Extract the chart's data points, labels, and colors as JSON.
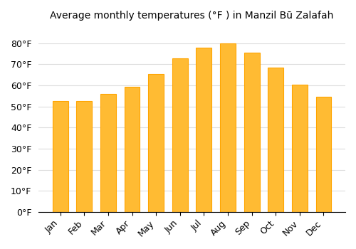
{
  "title": "Average monthly temperatures (°F ) in Manzil Bū Zalafah",
  "months": [
    "Jan",
    "Feb",
    "Mar",
    "Apr",
    "May",
    "Jun",
    "Jul",
    "Aug",
    "Sep",
    "Oct",
    "Nov",
    "Dec"
  ],
  "values": [
    52.5,
    52.5,
    56,
    59.5,
    65.5,
    73,
    78,
    80,
    75.5,
    68.5,
    60.5,
    54.5
  ],
  "bar_color": "#FFBB33",
  "bar_edge_color": "#FFA500",
  "ylim": [
    0,
    88
  ],
  "yticks": [
    0,
    10,
    20,
    30,
    40,
    50,
    60,
    70,
    80
  ],
  "background_color": "#ffffff",
  "grid_color": "#dddddd",
  "title_fontsize": 10,
  "tick_fontsize": 9
}
